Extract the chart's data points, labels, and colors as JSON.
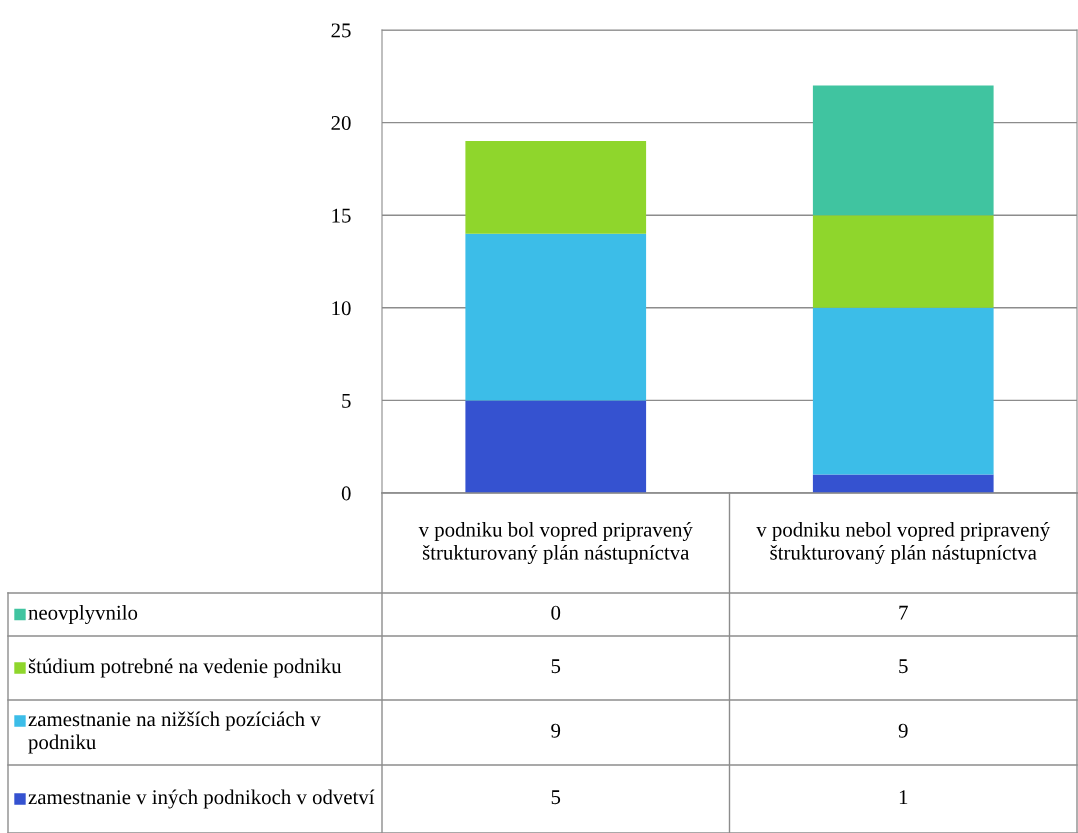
{
  "chart_data": {
    "type": "bar",
    "stacked": true,
    "categories": [
      "v podniku bol vopred pripravený štrukturovaný plán nástupníctva",
      "v podniku nebol vopred pripravený štrukturovaný plán nástupníctva"
    ],
    "series": [
      {
        "name": "zamestnanie v iných podnikoch v odvetví",
        "color": "#3552d0",
        "values": [
          5,
          1
        ]
      },
      {
        "name": "zamestnanie na nižších pozíciách v podniku",
        "color": "#3cbde8",
        "values": [
          9,
          9
        ]
      },
      {
        "name": "štúdium potrebné na vedenie podniku",
        "color": "#8fd62c",
        "values": [
          5,
          5
        ]
      },
      {
        "name": "neovplyvnilo",
        "color": "#40c4a0",
        "values": [
          0,
          7
        ]
      }
    ],
    "ylim": [
      0,
      25
    ],
    "yticks": [
      0,
      5,
      10,
      15,
      20,
      25
    ],
    "grid": "y",
    "legend": "bottom",
    "data_labels": true
  }
}
